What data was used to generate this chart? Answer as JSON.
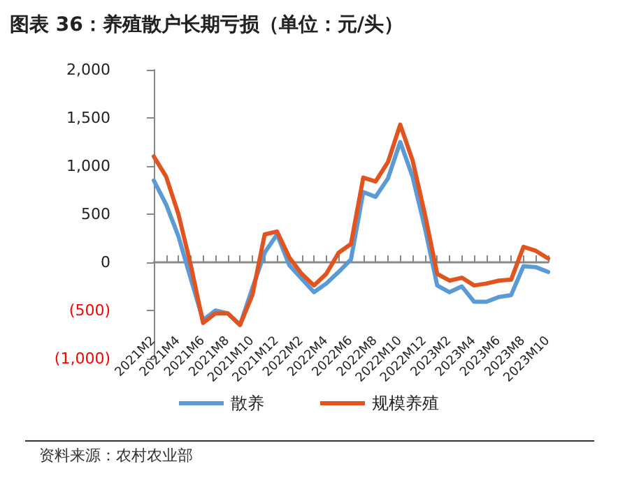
{
  "chart_data": {
    "type": "line",
    "title": "图表 36：养殖散户长期亏损（单位：元/头）",
    "categories": [
      "2021M2",
      null,
      "2021M4",
      null,
      "2021M6",
      null,
      "2021M8",
      null,
      "2021M10",
      null,
      "2021M12",
      null,
      "2022M2",
      null,
      "2022M4",
      null,
      "2022M6",
      null,
      "2022M8",
      null,
      "2022M10",
      null,
      "2022M12",
      null,
      "2023M2",
      null,
      "2023M4",
      null,
      "2023M6",
      null,
      "2023M8",
      null,
      "2023M10"
    ],
    "series": [
      {
        "name": "散养",
        "color": "#5b9bd5",
        "values": [
          850,
          600,
          270,
          -170,
          -600,
          -500,
          -530,
          -650,
          -270,
          100,
          290,
          -30,
          -170,
          -310,
          -220,
          -100,
          30,
          730,
          680,
          870,
          1250,
          890,
          360,
          -240,
          -310,
          -250,
          -410,
          -410,
          -360,
          -340,
          -40,
          -50,
          -100
        ]
      },
      {
        "name": "规模养殖",
        "color": "#e2541f",
        "values": [
          1100,
          890,
          500,
          -30,
          -630,
          -530,
          -530,
          -650,
          -340,
          290,
          320,
          50,
          -120,
          -240,
          -120,
          100,
          190,
          880,
          840,
          1040,
          1430,
          1060,
          500,
          -120,
          -190,
          -160,
          -240,
          -220,
          -190,
          -180,
          160,
          120,
          40
        ]
      }
    ],
    "ylim": [
      -1000,
      2000
    ],
    "yticks": [
      {
        "value": -1000,
        "label": "(1,000)"
      },
      {
        "value": -500,
        "label": "(500)"
      },
      0,
      500,
      {
        "value": 1000,
        "label": "1,000"
      },
      {
        "value": 1500,
        "label": "1,500"
      },
      {
        "value": 2000,
        "label": "2,000"
      }
    ],
    "legend": "bottom",
    "line_style": "solid",
    "annotations": [
      "资料来源：农村农业部"
    ]
  }
}
